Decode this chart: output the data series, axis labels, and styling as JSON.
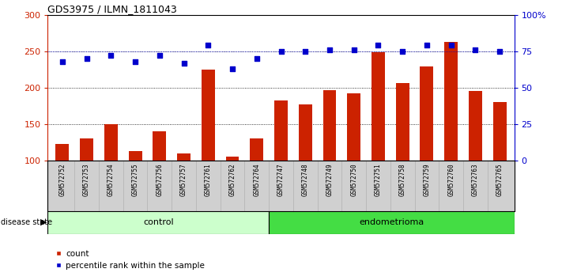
{
  "title": "GDS3975 / ILMN_1811043",
  "samples": [
    "GSM572752",
    "GSM572753",
    "GSM572754",
    "GSM572755",
    "GSM572756",
    "GSM572757",
    "GSM572761",
    "GSM572762",
    "GSM572764",
    "GSM572747",
    "GSM572748",
    "GSM572749",
    "GSM572750",
    "GSM572751",
    "GSM572758",
    "GSM572759",
    "GSM572760",
    "GSM572763",
    "GSM572765"
  ],
  "counts": [
    123,
    130,
    150,
    113,
    140,
    110,
    225,
    105,
    130,
    182,
    177,
    197,
    192,
    249,
    206,
    229,
    263,
    195,
    180
  ],
  "percentiles_pct": [
    68,
    70,
    72,
    68,
    72,
    67,
    79,
    63,
    70,
    75,
    75,
    76,
    76,
    79,
    75,
    79,
    79,
    76,
    75
  ],
  "n_control": 9,
  "n_endometrioma": 10,
  "control_label": "control",
  "endometrioma_label": "endometrioma",
  "disease_state_label": "disease state",
  "ylim_left": [
    100,
    300
  ],
  "ylim_right": [
    0,
    100
  ],
  "yticks_left": [
    100,
    150,
    200,
    250,
    300
  ],
  "yticks_right": [
    0,
    25,
    50,
    75,
    100
  ],
  "bar_color": "#cc2200",
  "scatter_color": "#0000cc",
  "control_bg": "#ccffcc",
  "endometrioma_bg": "#44dd44",
  "xticklabel_bg": "#d0d0d0",
  "legend_count_label": "count",
  "legend_pct_label": "percentile rank within the sample",
  "dotted_yticks": [
    150,
    200,
    250
  ]
}
